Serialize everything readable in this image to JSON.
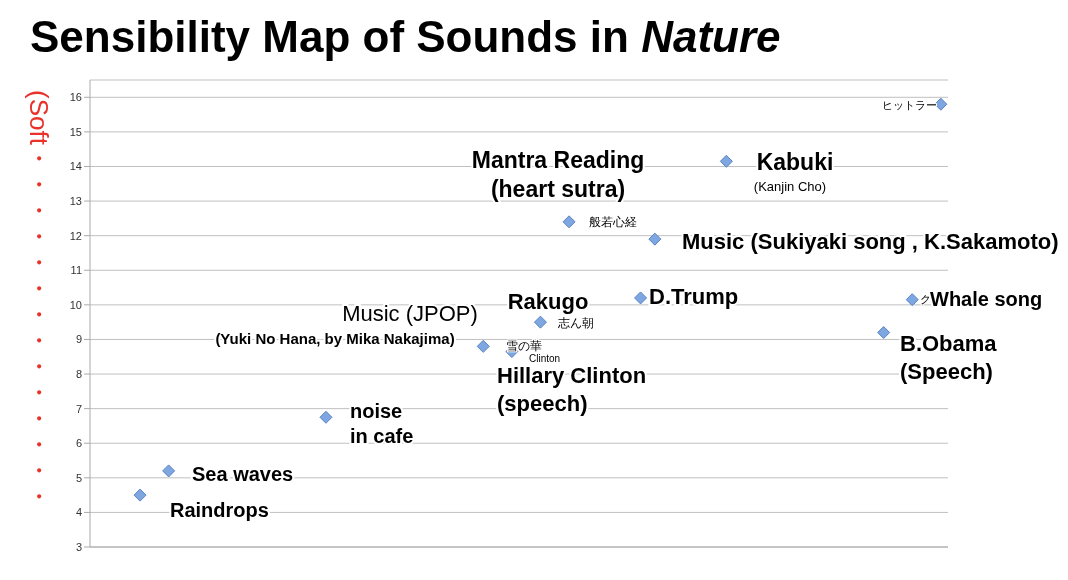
{
  "chart_data": {
    "type": "scatter",
    "title": "Sensibility Map of Sounds in Nature",
    "ylabel": "(Soft・・・・・・・・・・・・・・",
    "categories": [
      null,
      null,
      null,
      null,
      null,
      null,
      null,
      null,
      null,
      null,
      null,
      null,
      null,
      null,
      null,
      null,
      null,
      null,
      null,
      null,
      null,
      null,
      null,
      null,
      null,
      null,
      null,
      null,
      null,
      null,
      null,
      null,
      null,
      null,
      null,
      null,
      null,
      null,
      null,
      null,
      null,
      null,
      null,
      null,
      null,
      null,
      null,
      null,
      null,
      null,
      null,
      null,
      null,
      null,
      null,
      null,
      null,
      null,
      null,
      null
    ],
    "values": [
      null,
      null,
      null,
      4.5,
      null,
      5.2,
      null,
      null,
      null,
      null,
      null,
      null,
      null,
      null,
      null,
      null,
      6.75,
      null,
      null,
      null,
      null,
      null,
      null,
      null,
      null,
      null,
      null,
      8.8,
      null,
      8.65,
      null,
      9.5,
      null,
      12.4,
      null,
      null,
      null,
      null,
      10.2,
      11.9,
      null,
      null,
      null,
      null,
      14.15,
      null,
      null,
      null,
      null,
      null,
      null,
      null,
      null,
      null,
      null,
      9.2,
      null,
      10.15,
      null,
      15.8
    ],
    "color": "#7ea6e0",
    "marker": "diamond",
    "ylim": [
      3,
      16.5
    ],
    "yticks": [
      3,
      4,
      5,
      6,
      7,
      8,
      9,
      10,
      11,
      12,
      13,
      14,
      15,
      16
    ],
    "grid": "y",
    "annotations": [
      "Mantra Reading\n(heart sutra)",
      "Kabuki",
      "(Kanjin Cho)",
      "ヒットラー",
      "般若心経",
      "Music (Sukiyaki song , K.Sakamoto)",
      "Rakugo",
      "D.Trump",
      "ク",
      "Whale song",
      "Music (JPOP)",
      "(Yuki No Hana, by Mika Nakajima)",
      "志ん朝",
      "雪の華",
      "Clinton",
      "B.Obama\n(Speech)",
      "Hillary Clinton\n(speech)",
      "noise\nin cafe",
      "Sea waves",
      "Raindrops"
    ]
  }
}
